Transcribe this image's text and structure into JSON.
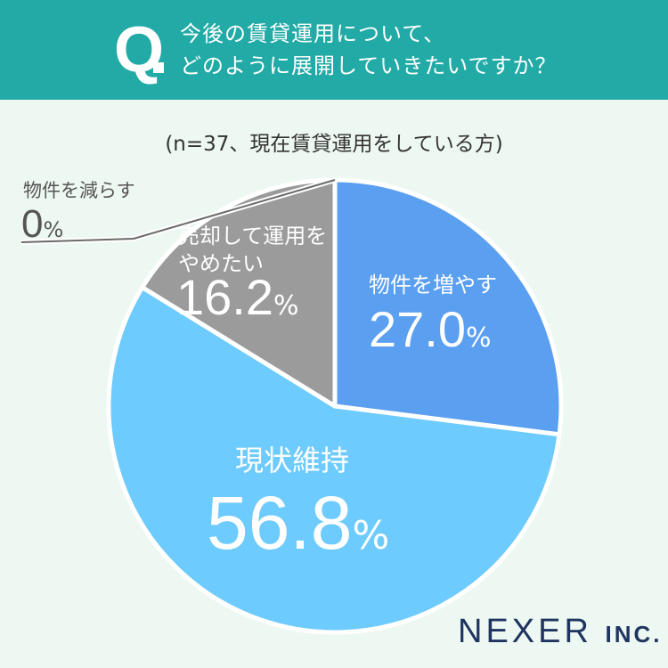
{
  "header": {
    "q_label": "Q",
    "question_lines": [
      "今後の賃貸運用について、",
      "どのように展開していきたいですか？"
    ]
  },
  "subtitle": "(n=37、現在賃貸運用をしている方)",
  "colors": {
    "header_bg": "#22aaa6",
    "background": "#eef8f2",
    "increase": "#5b9ff0",
    "maintain": "#6ecbfd",
    "sell": "#9b9b9b",
    "decrease": "#9b9b9b",
    "brand": "#1f3560"
  },
  "chart_data": {
    "type": "pie",
    "start": "12 o'clock, clockwise",
    "slices": [
      {
        "label": "物件を増やす",
        "value": 27.0,
        "value_text": "27.0",
        "unit": "%",
        "color": "#5b9ff0"
      },
      {
        "label": "現状維持",
        "value": 56.8,
        "value_text": "56.8",
        "unit": "%",
        "color": "#6ecbfd"
      },
      {
        "label": "売却して運用をやめたい",
        "label_lines": [
          "売却して運用を",
          "やめたい"
        ],
        "value": 16.2,
        "value_text": "16.2",
        "unit": "%",
        "color": "#9b9b9b"
      },
      {
        "label": "物件を減らす",
        "value": 0,
        "value_text": "0",
        "unit": "%",
        "color": "#9b9b9b"
      }
    ]
  },
  "brand": {
    "name": "NEXER",
    "suffix": "INC."
  }
}
